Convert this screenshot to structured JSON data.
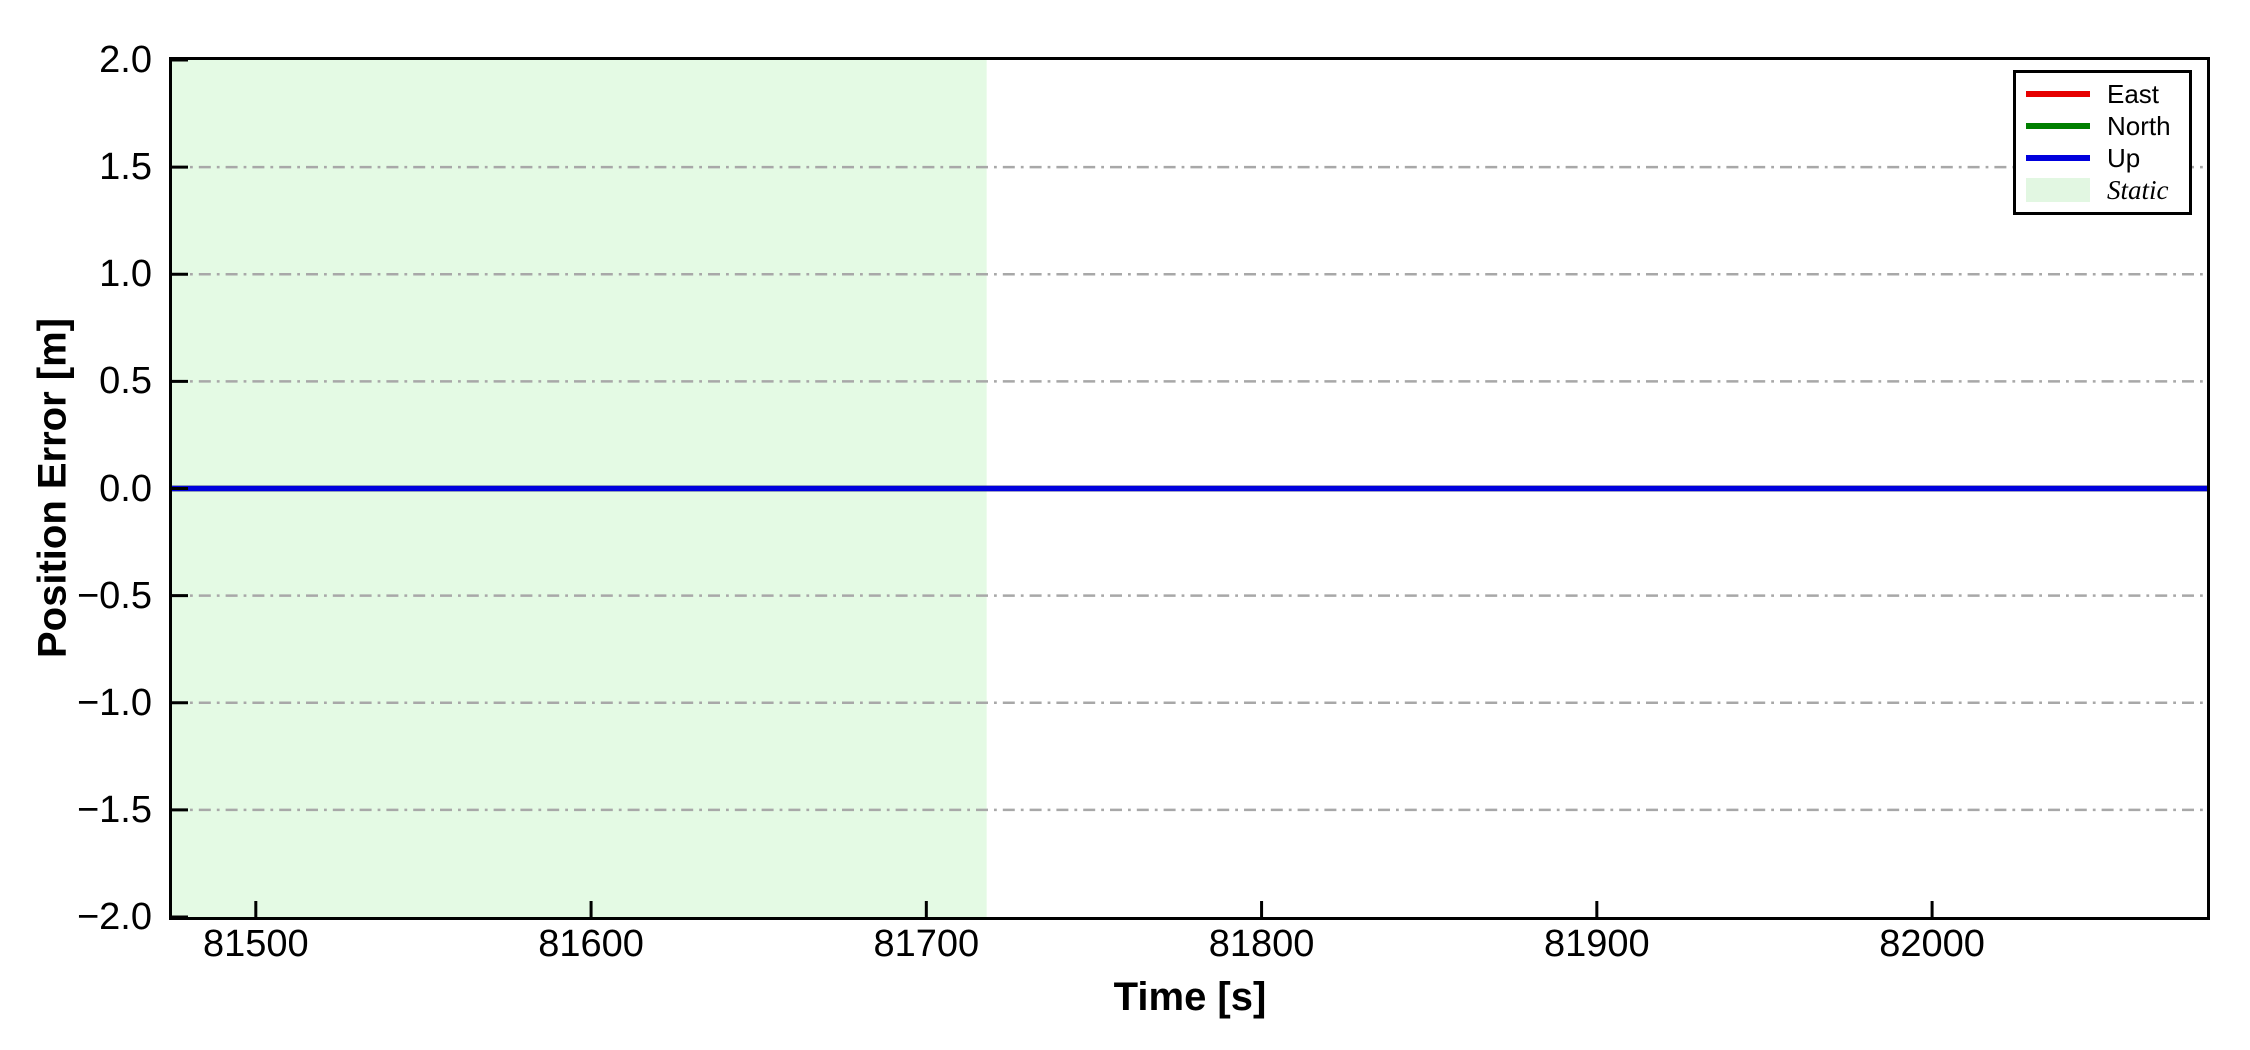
{
  "figure": {
    "background": "#ffffff",
    "spine_color": "#000000"
  },
  "chart_data": {
    "type": "line",
    "title": "",
    "xlabel": "Time [s]",
    "ylabel": "Position Error [m]",
    "xlim": [
      81475,
      82082
    ],
    "ylim": [
      -2.0,
      2.0
    ],
    "x_ticks": [
      81500,
      81600,
      81700,
      81800,
      81900,
      82000
    ],
    "x_tick_labels": [
      "81500",
      "81600",
      "81700",
      "81800",
      "81900",
      "82000"
    ],
    "y_ticks": [
      2.0,
      1.5,
      1.0,
      0.5,
      0.0,
      -0.5,
      -1.0,
      -1.5,
      -2.0
    ],
    "y_tick_labels": [
      "2.0",
      "1.5",
      "1.0",
      "0.5",
      "0.0",
      "−0.5",
      "−1.0",
      "−1.5",
      "−2.0"
    ],
    "grid": {
      "on": true,
      "style": "dash-dot",
      "color": "#a8a8a8",
      "values": [
        1.5,
        1.0,
        0.5,
        0.0,
        -0.5,
        -1.0,
        -1.5
      ]
    },
    "series": [
      {
        "name": "East",
        "color": "#e60000",
        "x": [
          81475,
          82082
        ],
        "y": [
          0.0,
          0.0
        ]
      },
      {
        "name": "North",
        "color": "#007f00",
        "x": [
          81475,
          82082
        ],
        "y": [
          0.0,
          0.0
        ]
      },
      {
        "name": "Up",
        "color": "#0000dd",
        "x": [
          81475,
          82082
        ],
        "y": [
          0.0,
          0.0
        ]
      }
    ],
    "regions": [
      {
        "name": "Static",
        "x_start": 81475,
        "x_end": 81718,
        "fill": "#e4fae4",
        "legend_swatch": "#e2f7e2"
      }
    ],
    "legend": {
      "position": "upper right",
      "entries": [
        "East",
        "North",
        "Up",
        "Static"
      ]
    }
  }
}
